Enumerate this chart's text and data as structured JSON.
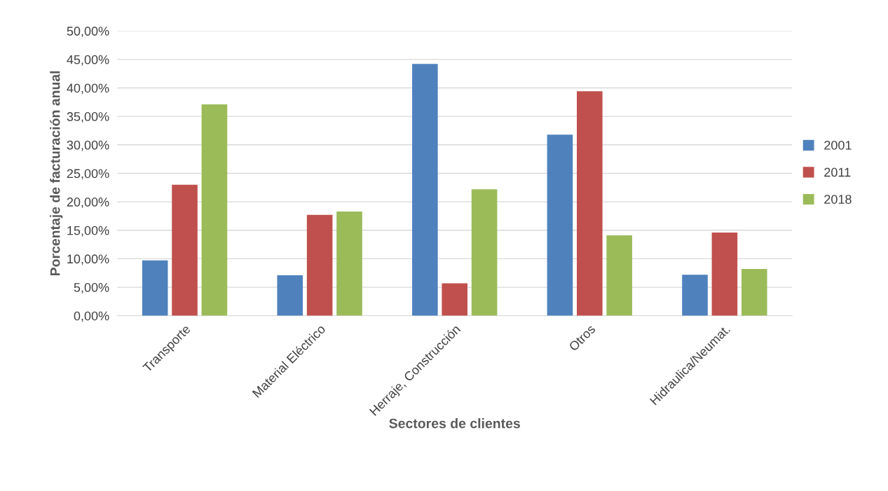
{
  "chart_data": {
    "type": "bar",
    "xlabel": "Sectores de clientes",
    "ylabel": "Porcentaje de facturación anual",
    "categories": [
      "Transporte",
      "Material Eléctrico",
      "Herraje, Construcción",
      "Otros",
      "Hidraulica/Neumat."
    ],
    "series": [
      {
        "name": "2001",
        "color": "#4f81bd",
        "values": [
          9.7,
          7.1,
          44.2,
          31.8,
          7.2
        ]
      },
      {
        "name": "2011",
        "color": "#c0504d",
        "values": [
          23.0,
          17.7,
          5.7,
          39.4,
          14.6
        ]
      },
      {
        "name": "2018",
        "color": "#9bbb59",
        "values": [
          37.1,
          18.3,
          22.2,
          14.1,
          8.2
        ]
      }
    ],
    "ylim": [
      0,
      50
    ],
    "yticks": [
      {
        "value": 0,
        "label": "0,00%"
      },
      {
        "value": 5,
        "label": "5,00%"
      },
      {
        "value": 10,
        "label": "10,00%"
      },
      {
        "value": 15,
        "label": "15,00%"
      },
      {
        "value": 20,
        "label": "20,00%"
      },
      {
        "value": 25,
        "label": "25,00%"
      },
      {
        "value": 30,
        "label": "30,00%"
      },
      {
        "value": 35,
        "label": "35,00%"
      },
      {
        "value": 40,
        "label": "40,00%"
      },
      {
        "value": 45,
        "label": "45,00%"
      },
      {
        "value": 50,
        "label": "50,00%"
      }
    ],
    "grid": "y",
    "legend": "right"
  }
}
